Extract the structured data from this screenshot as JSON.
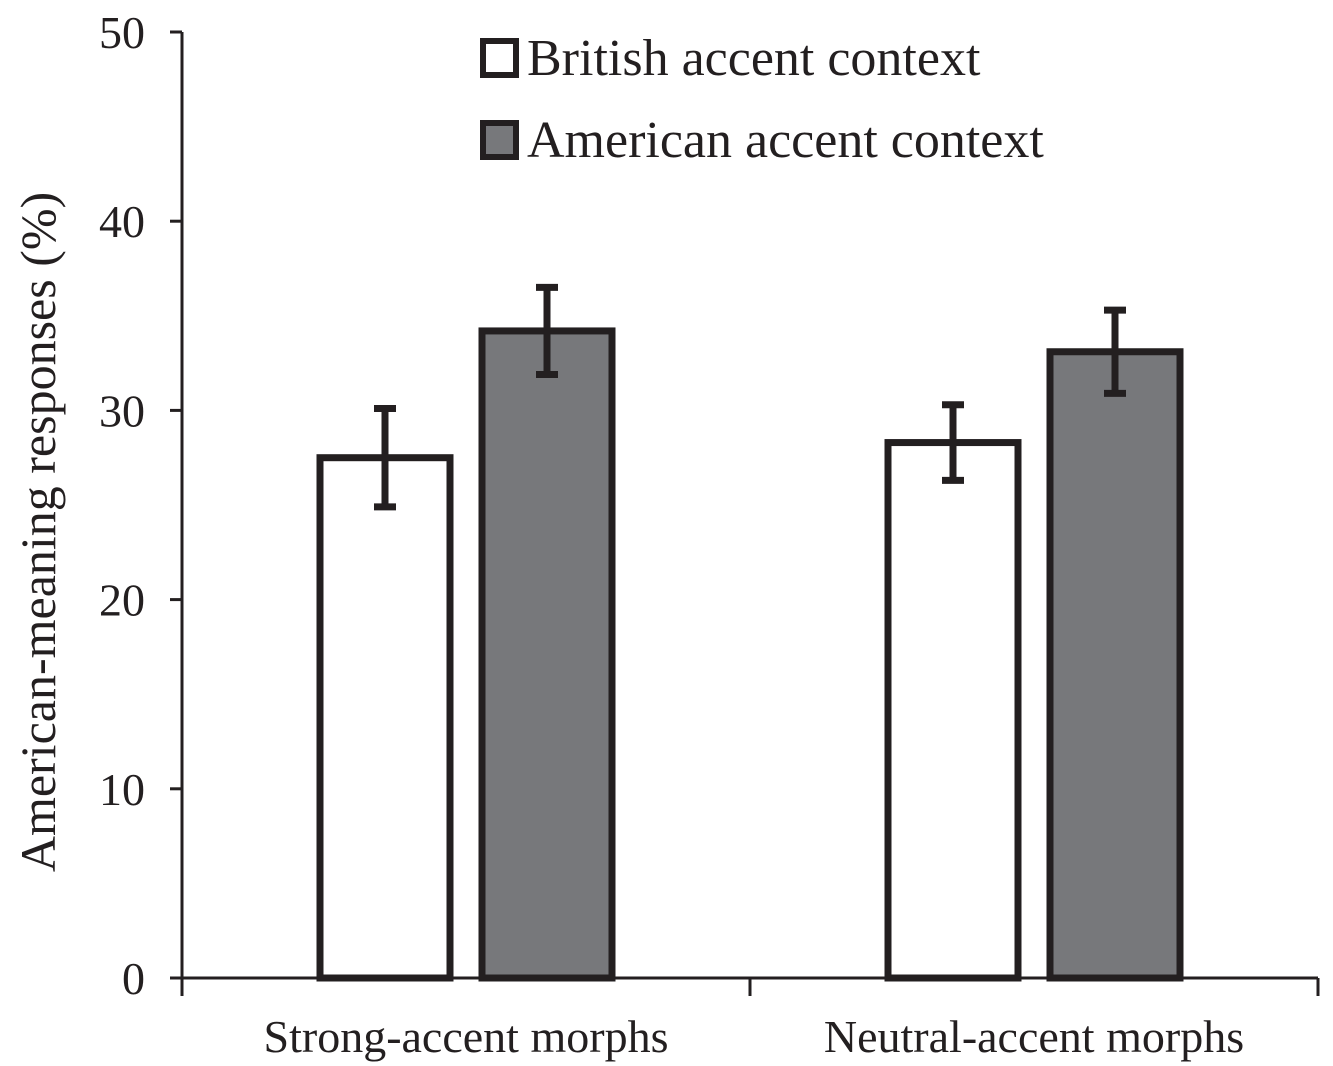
{
  "chart_data": {
    "type": "bar",
    "title": "",
    "xlabel": "",
    "ylabel": "American-meaning responses (%)",
    "ylim": [
      0,
      50
    ],
    "yticks": [
      "0",
      "10",
      "20",
      "30",
      "40",
      "50"
    ],
    "categories": [
      "Strong-accent morphs",
      "Neutral-accent morphs"
    ],
    "series": [
      {
        "name": "British accent context",
        "values": [
          27.5,
          28.3
        ],
        "error": [
          2.6,
          2.0
        ],
        "fill": "#ffffff"
      },
      {
        "name": "American accent context",
        "values": [
          34.2,
          33.1
        ],
        "error": [
          2.3,
          2.2
        ],
        "fill": "#77787b"
      }
    ],
    "legend_position": "top",
    "grid": false,
    "colors": {
      "stroke": "#231f20",
      "axis": "#231f20"
    }
  }
}
